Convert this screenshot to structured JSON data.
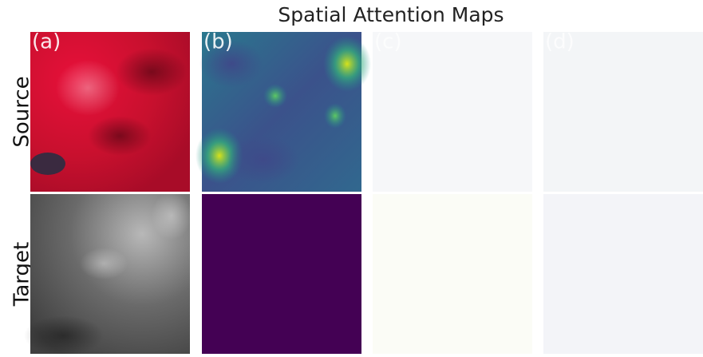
{
  "title": "Spatial Attention Maps",
  "rows": [
    "Source",
    "Target"
  ],
  "panels": [
    "(a)",
    "(b)",
    "(c)",
    "(d)"
  ]
}
